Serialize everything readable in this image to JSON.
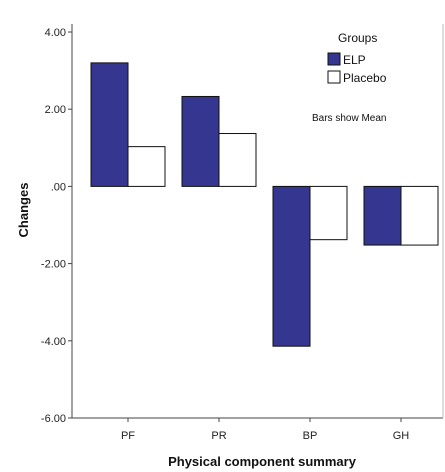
{
  "chart_data": {
    "type": "bar",
    "categories": [
      "PF",
      "PR",
      "BP",
      "GH"
    ],
    "series": [
      {
        "name": "ELP",
        "values": [
          3.2,
          2.33,
          -4.14,
          -1.52
        ],
        "color": "#34368f"
      },
      {
        "name": "Placebo",
        "values": [
          1.03,
          1.37,
          -1.38,
          -1.52
        ],
        "color": "#ffffff"
      }
    ],
    "xlabel": "Physical component summary",
    "ylabel": "Changes",
    "ylim": [
      -6,
      4
    ],
    "yticks": [
      4,
      2,
      0,
      -2,
      -4,
      -6
    ],
    "ytick_labels": [
      "4.00",
      "2.00",
      ".00",
      "-2.00",
      "-4.00",
      "-6.00"
    ],
    "legend": {
      "title": "Groups",
      "placement": "top-right"
    },
    "note": "Bars show Mean",
    "grid": false
  }
}
